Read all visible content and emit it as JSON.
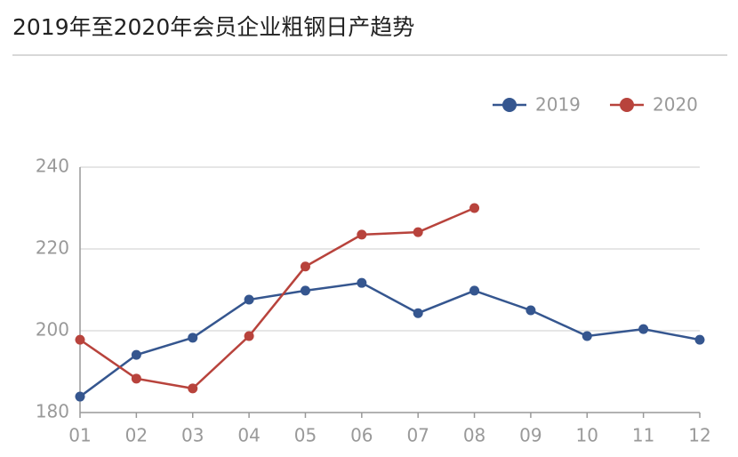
{
  "chart_data": {
    "type": "line",
    "title": "2019年至2020年会员企业粗钢日产趋势",
    "categories": [
      "01",
      "02",
      "03",
      "04",
      "05",
      "06",
      "07",
      "08",
      "09",
      "10",
      "11",
      "12"
    ],
    "series": [
      {
        "name": "2019",
        "color": "#35568f",
        "values": [
          183.9,
          194.1,
          198.3,
          207.6,
          209.8,
          211.7,
          204.3,
          209.8,
          205,
          198.7,
          200.4,
          197.8
        ]
      },
      {
        "name": "2020",
        "color": "#b8433c",
        "values": [
          197.8,
          188.3,
          185.9,
          198.7,
          215.7,
          223.5,
          224.1,
          230,
          null,
          null,
          null,
          null
        ]
      }
    ],
    "ylim": [
      180,
      240
    ],
    "yticks": [
      180,
      200,
      220,
      240
    ],
    "grid": true,
    "legend": "top-right"
  }
}
